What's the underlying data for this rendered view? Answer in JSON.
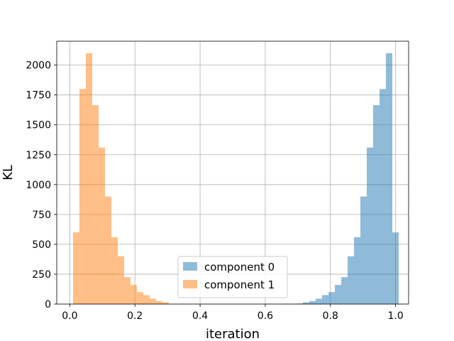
{
  "chart_data": {
    "type": "bar",
    "xlabel": "iteration",
    "ylabel": "KL",
    "xlim": [
      -0.04,
      1.04
    ],
    "ylim": [
      0,
      2200
    ],
    "xticks": [
      0.0,
      0.2,
      0.4,
      0.6,
      0.8,
      1.0
    ],
    "xtick_labels": [
      "0.0",
      "0.2",
      "0.4",
      "0.6",
      "0.8",
      "1.0"
    ],
    "yticks": [
      0,
      250,
      500,
      750,
      1000,
      1250,
      1500,
      1750,
      2000
    ],
    "ytick_labels": [
      "0",
      "250",
      "500",
      "750",
      "1000",
      "1250",
      "1500",
      "1750",
      "2000"
    ],
    "grid": true,
    "legend_position": "lower-center",
    "bin_width": 0.0196,
    "series": [
      {
        "name": "component 0",
        "color": "#1f77b4",
        "alpha": 0.5,
        "bin_start": [
          0.696,
          0.7156,
          0.7352,
          0.7548,
          0.7744,
          0.794,
          0.8136,
          0.8332,
          0.8528,
          0.8724,
          0.892,
          0.9116,
          0.9312,
          0.9508,
          0.9704
        ],
        "counts": [
          5,
          15,
          25,
          45,
          75,
          100,
          160,
          225,
          400,
          560,
          900,
          1310,
          1665,
          1800,
          2100
        ]
      },
      {
        "name": "component 1",
        "color": "#ff7f0e",
        "alpha": 0.5,
        "bin_start": [
          0.01,
          0.0296,
          0.0492,
          0.0688,
          0.0884,
          0.108,
          0.1276,
          0.1472,
          0.1668,
          0.1864,
          0.206,
          0.2256,
          0.2452,
          0.2648,
          0.2844
        ],
        "counts": [
          600,
          1800,
          2100,
          1665,
          1310,
          900,
          560,
          400,
          225,
          160,
          100,
          75,
          45,
          25,
          15
        ]
      }
    ],
    "extra_bars": {
      "component 0": [
        {
          "bin_start": 0.9704,
          "count": 2100
        },
        {
          "bin_start": 0.99,
          "count": 600
        }
      ]
    }
  }
}
